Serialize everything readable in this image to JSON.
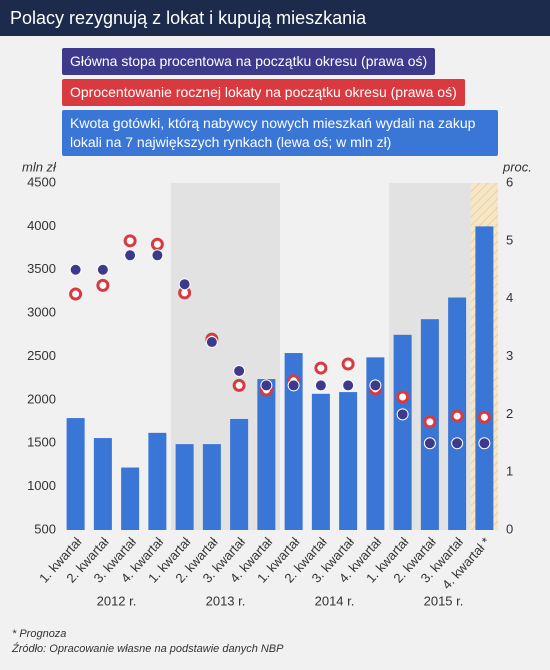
{
  "chart_data": {
    "type": "bar",
    "title": "Polacy rezygnują z lokat i kupują mieszkania",
    "ylabel": "mln zł",
    "y2label": "proc.",
    "categories": [
      "1. kwartał",
      "2. kwartał",
      "3. kwartał",
      "4. kwartał",
      "1. kwartał",
      "2. kwartał",
      "3. kwartał",
      "4. kwartał",
      "1. kwartał",
      "2. kwartał",
      "3. kwartał",
      "4. kwartał",
      "1. kwartał",
      "2. kwartał",
      "3. kwartał",
      "4. kwartał *"
    ],
    "year_labels": [
      "2012 r.",
      "2013 r.",
      "2014 r.",
      "2015 r."
    ],
    "series": [
      {
        "name": "Główna stopa procentowa na początku okresu (prawa oś)",
        "type": "scatter",
        "axis": "y2",
        "color": "#3d3a8c",
        "values": [
          4.5,
          4.5,
          4.75,
          4.75,
          4.25,
          3.25,
          2.75,
          2.5,
          2.5,
          2.5,
          2.5,
          2.5,
          2.0,
          1.5,
          1.5,
          1.5
        ]
      },
      {
        "name": "Oprocentowanie rocznej lokaty na początku okresu (prawa oś)",
        "type": "scatter",
        "axis": "y2",
        "color": "#d93a40",
        "values": [
          4.08,
          4.23,
          5.0,
          4.94,
          4.1,
          3.3,
          2.5,
          2.42,
          2.58,
          2.8,
          2.87,
          2.44,
          2.3,
          1.87,
          1.97,
          1.95
        ]
      },
      {
        "name": "Kwota gotówki, którą nabywcy nowych mieszkań wydali na zakup lokali na 7 największych rynkach (lewa oś; w mln zł)",
        "type": "bar",
        "axis": "y",
        "color": "#3a76d6",
        "values": [
          1790,
          1560,
          1220,
          1620,
          1490,
          1490,
          1780,
          2240,
          2540,
          2070,
          2090,
          2490,
          2750,
          2930,
          3180,
          4000
        ]
      }
    ],
    "ylim": [
      500,
      4500
    ],
    "yticks": [
      500,
      1000,
      1500,
      2000,
      2500,
      3000,
      3500,
      4000,
      4500
    ],
    "y2lim": [
      0,
      6
    ],
    "y2ticks": [
      0,
      1,
      2,
      3,
      4,
      5,
      6
    ],
    "note": "* Prognoza",
    "source": "Źródło: Opracowanie własne na podstawie danych NBP"
  }
}
